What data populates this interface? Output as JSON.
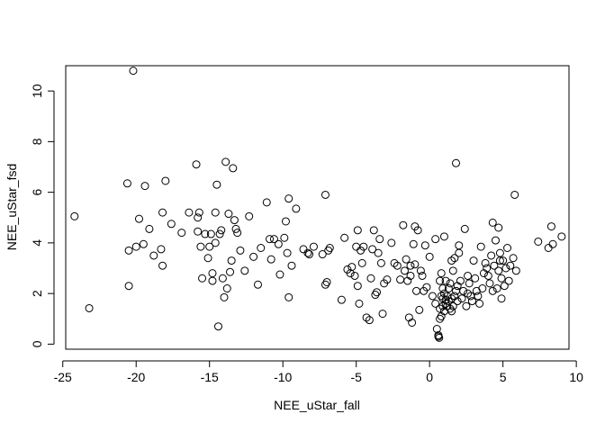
{
  "chart_data": {
    "type": "scatter",
    "title": "",
    "xlabel": "NEE_uStar_fall",
    "ylabel": "NEE_uStar_fsd",
    "xlim": [
      -24.8,
      9.5
    ],
    "ylim": [
      -0.2,
      11.0
    ],
    "xticks": [
      -25,
      -20,
      -15,
      -10,
      -5,
      0,
      5,
      10
    ],
    "yticks": [
      0,
      2,
      4,
      6,
      8,
      10
    ],
    "grid": false,
    "legend": "none",
    "marker": "open-circle",
    "color": "#000000",
    "points": [
      [
        -24.2,
        5.05
      ],
      [
        -23.2,
        1.42
      ],
      [
        -20.6,
        6.35
      ],
      [
        -20.5,
        2.3
      ],
      [
        -20.5,
        3.7
      ],
      [
        -20.2,
        10.8
      ],
      [
        -20.0,
        3.85
      ],
      [
        -19.8,
        4.95
      ],
      [
        -19.5,
        3.95
      ],
      [
        -19.4,
        6.25
      ],
      [
        -19.1,
        4.55
      ],
      [
        -18.8,
        3.5
      ],
      [
        -18.3,
        3.75
      ],
      [
        -18.2,
        3.1
      ],
      [
        -18.2,
        5.2
      ],
      [
        -18.0,
        6.45
      ],
      [
        -17.6,
        4.75
      ],
      [
        -16.9,
        4.4
      ],
      [
        -16.4,
        5.2
      ],
      [
        -15.9,
        7.1
      ],
      [
        -15.8,
        5.0
      ],
      [
        -15.8,
        4.45
      ],
      [
        -15.7,
        5.2
      ],
      [
        -15.6,
        3.85
      ],
      [
        -15.5,
        2.6
      ],
      [
        -15.3,
        4.35
      ],
      [
        -15.1,
        3.4
      ],
      [
        -15.0,
        3.85
      ],
      [
        -14.9,
        4.35
      ],
      [
        -14.8,
        2.5
      ],
      [
        -14.8,
        2.8
      ],
      [
        -14.6,
        5.2
      ],
      [
        -14.6,
        4.0
      ],
      [
        -14.5,
        6.3
      ],
      [
        -14.4,
        0.7
      ],
      [
        -14.3,
        4.35
      ],
      [
        -14.2,
        4.5
      ],
      [
        -14.1,
        2.6
      ],
      [
        -14.0,
        1.85
      ],
      [
        -13.9,
        7.2
      ],
      [
        -13.8,
        2.2
      ],
      [
        -13.7,
        5.15
      ],
      [
        -13.6,
        2.85
      ],
      [
        -13.5,
        3.3
      ],
      [
        -13.4,
        6.95
      ],
      [
        -13.3,
        4.9
      ],
      [
        -13.2,
        4.55
      ],
      [
        -13.1,
        4.4
      ],
      [
        -12.9,
        3.7
      ],
      [
        -12.6,
        2.9
      ],
      [
        -12.3,
        5.05
      ],
      [
        -12.0,
        3.45
      ],
      [
        -11.7,
        2.35
      ],
      [
        -11.5,
        3.8
      ],
      [
        -11.1,
        5.6
      ],
      [
        -10.9,
        4.15
      ],
      [
        -10.8,
        3.35
      ],
      [
        -10.6,
        4.15
      ],
      [
        -10.3,
        3.95
      ],
      [
        -10.2,
        2.75
      ],
      [
        -9.9,
        4.2
      ],
      [
        -9.8,
        4.85
      ],
      [
        -9.7,
        3.6
      ],
      [
        -9.6,
        1.85
      ],
      [
        -9.6,
        5.75
      ],
      [
        -9.4,
        3.1
      ],
      [
        -9.1,
        5.35
      ],
      [
        -8.6,
        3.75
      ],
      [
        -8.3,
        3.6
      ],
      [
        -8.2,
        3.55
      ],
      [
        -7.9,
        3.85
      ],
      [
        -7.3,
        3.55
      ],
      [
        -7.1,
        5.9
      ],
      [
        -7.1,
        2.35
      ],
      [
        -7.0,
        2.45
      ],
      [
        -6.9,
        3.7
      ],
      [
        -6.8,
        3.8
      ],
      [
        -6.0,
        1.75
      ],
      [
        -5.8,
        4.2
      ],
      [
        -5.6,
        2.95
      ],
      [
        -5.4,
        2.8
      ],
      [
        -5.3,
        3.05
      ],
      [
        -5.1,
        2.7
      ],
      [
        -5.0,
        3.85
      ],
      [
        -4.9,
        4.5
      ],
      [
        -4.9,
        2.3
      ],
      [
        -4.8,
        1.6
      ],
      [
        -4.7,
        3.7
      ],
      [
        -4.6,
        3.2
      ],
      [
        -4.5,
        3.85
      ],
      [
        -4.3,
        1.05
      ],
      [
        -4.1,
        0.95
      ],
      [
        -4.0,
        2.6
      ],
      [
        -3.9,
        3.75
      ],
      [
        -3.8,
        4.5
      ],
      [
        -3.7,
        1.95
      ],
      [
        -3.6,
        2.05
      ],
      [
        -3.5,
        3.6
      ],
      [
        -3.4,
        4.15
      ],
      [
        -3.3,
        3.2
      ],
      [
        -3.2,
        1.2
      ],
      [
        -3.1,
        2.4
      ],
      [
        -2.9,
        2.55
      ],
      [
        -2.6,
        4.0
      ],
      [
        -2.4,
        3.2
      ],
      [
        -2.2,
        3.1
      ],
      [
        -2.0,
        2.55
      ],
      [
        -1.8,
        4.7
      ],
      [
        -1.7,
        2.9
      ],
      [
        -1.6,
        3.35
      ],
      [
        -1.5,
        2.5
      ],
      [
        -1.4,
        1.05
      ],
      [
        -1.3,
        2.7
      ],
      [
        -1.3,
        3.1
      ],
      [
        -1.2,
        0.85
      ],
      [
        -1.1,
        3.95
      ],
      [
        -1.0,
        4.65
      ],
      [
        -1.0,
        3.15
      ],
      [
        -0.9,
        2.1
      ],
      [
        -0.8,
        4.5
      ],
      [
        -0.7,
        1.35
      ],
      [
        -0.6,
        2.9
      ],
      [
        -0.5,
        2.7
      ],
      [
        -0.4,
        2.1
      ],
      [
        -0.3,
        3.9
      ],
      [
        -0.2,
        2.25
      ],
      [
        0.0,
        3.45
      ],
      [
        0.2,
        1.9
      ],
      [
        0.4,
        1.6
      ],
      [
        0.5,
        0.6
      ],
      [
        0.6,
        0.3
      ],
      [
        0.6,
        0.35
      ],
      [
        0.65,
        0.25
      ],
      [
        0.7,
        1.4
      ],
      [
        0.7,
        2.5
      ],
      [
        0.8,
        1.1
      ],
      [
        0.8,
        2.8
      ],
      [
        0.9,
        1.8
      ],
      [
        1.0,
        4.25
      ],
      [
        1.0,
        2.0
      ],
      [
        1.1,
        1.6
      ],
      [
        1.2,
        1.9
      ],
      [
        1.3,
        2.2
      ],
      [
        1.4,
        1.4
      ],
      [
        1.5,
        1.8
      ],
      [
        1.6,
        2.9
      ],
      [
        1.7,
        3.4
      ],
      [
        1.8,
        2.1
      ],
      [
        1.9,
        1.7
      ],
      [
        2.0,
        3.9
      ],
      [
        2.1,
        2.5
      ],
      [
        2.2,
        1.8
      ],
      [
        2.4,
        4.55
      ],
      [
        2.6,
        2.0
      ],
      [
        2.8,
        1.9
      ],
      [
        3.0,
        3.3
      ],
      [
        3.2,
        2.1
      ],
      [
        3.4,
        1.6
      ],
      [
        3.5,
        3.85
      ],
      [
        3.7,
        2.8
      ],
      [
        3.9,
        3.0
      ],
      [
        4.1,
        2.4
      ],
      [
        4.3,
        2.1
      ],
      [
        4.5,
        4.1
      ],
      [
        4.6,
        2.2
      ],
      [
        4.7,
        2.9
      ],
      [
        4.8,
        3.6
      ],
      [
        4.9,
        1.8
      ],
      [
        5.0,
        3.3
      ],
      [
        5.1,
        2.3
      ],
      [
        5.3,
        3.8
      ],
      [
        5.5,
        3.1
      ],
      [
        5.7,
        3.4
      ],
      [
        5.9,
        2.9
      ],
      [
        1.8,
        7.15
      ],
      [
        5.8,
        5.9
      ],
      [
        4.3,
        4.8
      ],
      [
        4.7,
        4.6
      ],
      [
        7.4,
        4.05
      ],
      [
        8.1,
        3.8
      ],
      [
        8.3,
        4.65
      ],
      [
        8.4,
        3.95
      ],
      [
        9.0,
        4.25
      ],
      [
        0.4,
        4.15
      ],
      [
        1.5,
        3.3
      ],
      [
        2.0,
        3.6
      ],
      [
        0.9,
        2.2
      ],
      [
        1.1,
        2.5
      ],
      [
        1.3,
        1.7
      ],
      [
        1.6,
        1.5
      ],
      [
        0.8,
        1.9
      ],
      [
        1.0,
        1.3
      ],
      [
        1.2,
        1.5
      ],
      [
        1.4,
        2.4
      ],
      [
        1.7,
        1.9
      ],
      [
        2.3,
        2.1
      ],
      [
        2.7,
        2.4
      ],
      [
        3.1,
        2.6
      ],
      [
        3.6,
        2.2
      ],
      [
        4.0,
        2.7
      ],
      [
        4.4,
        3.1
      ],
      [
        4.8,
        3.3
      ],
      [
        5.2,
        3.0
      ],
      [
        2.5,
        1.5
      ],
      [
        2.9,
        1.7
      ],
      [
        3.3,
        1.9
      ],
      [
        0.7,
        1.0
      ],
      [
        0.9,
        1.5
      ],
      [
        1.1,
        1.75
      ],
      [
        1.5,
        1.3
      ],
      [
        1.9,
        2.3
      ],
      [
        2.6,
        2.7
      ],
      [
        3.8,
        3.2
      ],
      [
        4.2,
        3.5
      ],
      [
        4.9,
        2.6
      ],
      [
        5.4,
        2.5
      ]
    ]
  }
}
